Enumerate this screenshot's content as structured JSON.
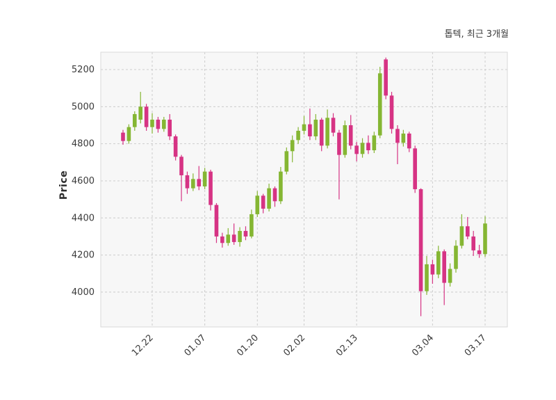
{
  "chart_data": {
    "type": "candlestick",
    "title": "톱텍, 최근 3개월",
    "ylabel": "Price",
    "ylim": [
      3812,
      5294
    ],
    "yticks": [
      4000,
      4200,
      4400,
      4600,
      4800,
      5000,
      5200
    ],
    "xticks": [
      {
        "index": 5,
        "label": "12.22"
      },
      {
        "index": 14,
        "label": "01.07"
      },
      {
        "index": 23,
        "label": "01.20"
      },
      {
        "index": 31,
        "label": "02.02"
      },
      {
        "index": 40,
        "label": "02.13"
      },
      {
        "index": 53,
        "label": "03.04"
      },
      {
        "index": 62,
        "label": "03.17"
      }
    ],
    "colors": {
      "up": "#85b633",
      "down": "#d63384",
      "grid": "#cccccc",
      "spine": "#d9d9d9",
      "plot_bg": "#f7f7f7",
      "tick_text": "#3a3a3a"
    },
    "legend_position": "none",
    "grid": true,
    "candles": [
      {
        "date": "12.15",
        "open": 4860,
        "high": 4875,
        "low": 4795,
        "close": 4815
      },
      {
        "date": "12.16",
        "open": 4815,
        "high": 4905,
        "low": 4800,
        "close": 4890
      },
      {
        "date": "12.17",
        "open": 4890,
        "high": 4975,
        "low": 4870,
        "close": 4960
      },
      {
        "date": "12.18",
        "open": 4930,
        "high": 5080,
        "low": 4910,
        "close": 5000
      },
      {
        "date": "12.19",
        "open": 5000,
        "high": 5015,
        "low": 4870,
        "close": 4890
      },
      {
        "date": "12.22",
        "open": 4890,
        "high": 4965,
        "low": 4855,
        "close": 4930
      },
      {
        "date": "12.23",
        "open": 4930,
        "high": 4945,
        "low": 4860,
        "close": 4880
      },
      {
        "date": "12.24",
        "open": 4880,
        "high": 4945,
        "low": 4865,
        "close": 4930
      },
      {
        "date": "12.26",
        "open": 4930,
        "high": 4960,
        "low": 4820,
        "close": 4840
      },
      {
        "date": "12.29",
        "open": 4840,
        "high": 4850,
        "low": 4710,
        "close": 4730
      },
      {
        "date": "12.30",
        "open": 4730,
        "high": 4740,
        "low": 4490,
        "close": 4630
      },
      {
        "date": "01.02",
        "open": 4630,
        "high": 4650,
        "low": 4530,
        "close": 4560
      },
      {
        "date": "01.05",
        "open": 4560,
        "high": 4640,
        "low": 4545,
        "close": 4610
      },
      {
        "date": "01.06",
        "open": 4610,
        "high": 4680,
        "low": 4550,
        "close": 4570
      },
      {
        "date": "01.07",
        "open": 4570,
        "high": 4670,
        "low": 4555,
        "close": 4650
      },
      {
        "date": "01.08",
        "open": 4650,
        "high": 4660,
        "low": 4440,
        "close": 4470
      },
      {
        "date": "01.09",
        "open": 4470,
        "high": 4480,
        "low": 4265,
        "close": 4300
      },
      {
        "date": "01.12",
        "open": 4300,
        "high": 4320,
        "low": 4240,
        "close": 4265
      },
      {
        "date": "01.13",
        "open": 4265,
        "high": 4345,
        "low": 4250,
        "close": 4310
      },
      {
        "date": "01.14",
        "open": 4310,
        "high": 4370,
        "low": 4255,
        "close": 4270
      },
      {
        "date": "01.15",
        "open": 4270,
        "high": 4350,
        "low": 4245,
        "close": 4330
      },
      {
        "date": "01.16",
        "open": 4330,
        "high": 4355,
        "low": 4280,
        "close": 4300
      },
      {
        "date": "01.19",
        "open": 4300,
        "high": 4445,
        "low": 4290,
        "close": 4420
      },
      {
        "date": "01.20",
        "open": 4420,
        "high": 4545,
        "low": 4405,
        "close": 4520
      },
      {
        "date": "01.21",
        "open": 4520,
        "high": 4530,
        "low": 4425,
        "close": 4450
      },
      {
        "date": "01.22",
        "open": 4450,
        "high": 4585,
        "low": 4435,
        "close": 4560
      },
      {
        "date": "01.23",
        "open": 4560,
        "high": 4570,
        "low": 4460,
        "close": 4490
      },
      {
        "date": "01.26",
        "open": 4490,
        "high": 4675,
        "low": 4475,
        "close": 4650
      },
      {
        "date": "01.27",
        "open": 4650,
        "high": 4780,
        "low": 4635,
        "close": 4760
      },
      {
        "date": "01.28",
        "open": 4760,
        "high": 4845,
        "low": 4700,
        "close": 4820
      },
      {
        "date": "01.29",
        "open": 4820,
        "high": 4890,
        "low": 4800,
        "close": 4870
      },
      {
        "date": "02.02",
        "open": 4870,
        "high": 4950,
        "low": 4850,
        "close": 4905
      },
      {
        "date": "02.03",
        "open": 4905,
        "high": 4990,
        "low": 4820,
        "close": 4840
      },
      {
        "date": "02.04",
        "open": 4840,
        "high": 4960,
        "low": 4820,
        "close": 4930
      },
      {
        "date": "02.05",
        "open": 4930,
        "high": 4940,
        "low": 4760,
        "close": 4790
      },
      {
        "date": "02.06",
        "open": 4790,
        "high": 4985,
        "low": 4775,
        "close": 4940
      },
      {
        "date": "02.09",
        "open": 4940,
        "high": 4965,
        "low": 4840,
        "close": 4860
      },
      {
        "date": "02.10",
        "open": 4860,
        "high": 4875,
        "low": 4500,
        "close": 4740
      },
      {
        "date": "02.11",
        "open": 4740,
        "high": 4925,
        "low": 4725,
        "close": 4900
      },
      {
        "date": "02.12",
        "open": 4900,
        "high": 4955,
        "low": 4770,
        "close": 4790
      },
      {
        "date": "02.13",
        "open": 4790,
        "high": 4810,
        "low": 4705,
        "close": 4745
      },
      {
        "date": "02.16",
        "open": 4745,
        "high": 4830,
        "low": 4725,
        "close": 4805
      },
      {
        "date": "02.17",
        "open": 4805,
        "high": 4845,
        "low": 4745,
        "close": 4765
      },
      {
        "date": "02.18",
        "open": 4765,
        "high": 4865,
        "low": 4750,
        "close": 4845
      },
      {
        "date": "02.19",
        "open": 4845,
        "high": 5215,
        "low": 4830,
        "close": 5180
      },
      {
        "date": "02.20",
        "open": 5255,
        "high": 5265,
        "low": 5040,
        "close": 5060
      },
      {
        "date": "02.23",
        "open": 5060,
        "high": 5080,
        "low": 4855,
        "close": 4880
      },
      {
        "date": "02.24",
        "open": 4880,
        "high": 4900,
        "low": 4690,
        "close": 4805
      },
      {
        "date": "02.25",
        "open": 4805,
        "high": 4875,
        "low": 4785,
        "close": 4855
      },
      {
        "date": "02.26",
        "open": 4855,
        "high": 4865,
        "low": 4755,
        "close": 4775
      },
      {
        "date": "02.27",
        "open": 4775,
        "high": 4790,
        "low": 4535,
        "close": 4555
      },
      {
        "date": "03.02",
        "open": 4555,
        "high": 4560,
        "low": 3870,
        "close": 4005
      },
      {
        "date": "03.03",
        "open": 4005,
        "high": 4195,
        "low": 3985,
        "close": 4150
      },
      {
        "date": "03.04",
        "open": 4150,
        "high": 4175,
        "low": 4045,
        "close": 4095
      },
      {
        "date": "03.05",
        "open": 4095,
        "high": 4250,
        "low": 4075,
        "close": 4220
      },
      {
        "date": "03.06",
        "open": 4220,
        "high": 4230,
        "low": 3930,
        "close": 4050
      },
      {
        "date": "03.09",
        "open": 4050,
        "high": 4155,
        "low": 4030,
        "close": 4125
      },
      {
        "date": "03.10",
        "open": 4125,
        "high": 4280,
        "low": 4105,
        "close": 4250
      },
      {
        "date": "03.11",
        "open": 4250,
        "high": 4420,
        "low": 4235,
        "close": 4355
      },
      {
        "date": "03.12",
        "open": 4355,
        "high": 4405,
        "low": 4285,
        "close": 4300
      },
      {
        "date": "03.13",
        "open": 4300,
        "high": 4330,
        "low": 4195,
        "close": 4225
      },
      {
        "date": "03.16",
        "open": 4225,
        "high": 4255,
        "low": 4185,
        "close": 4205
      },
      {
        "date": "03.17",
        "open": 4205,
        "high": 4410,
        "low": 4190,
        "close": 4370
      }
    ]
  }
}
